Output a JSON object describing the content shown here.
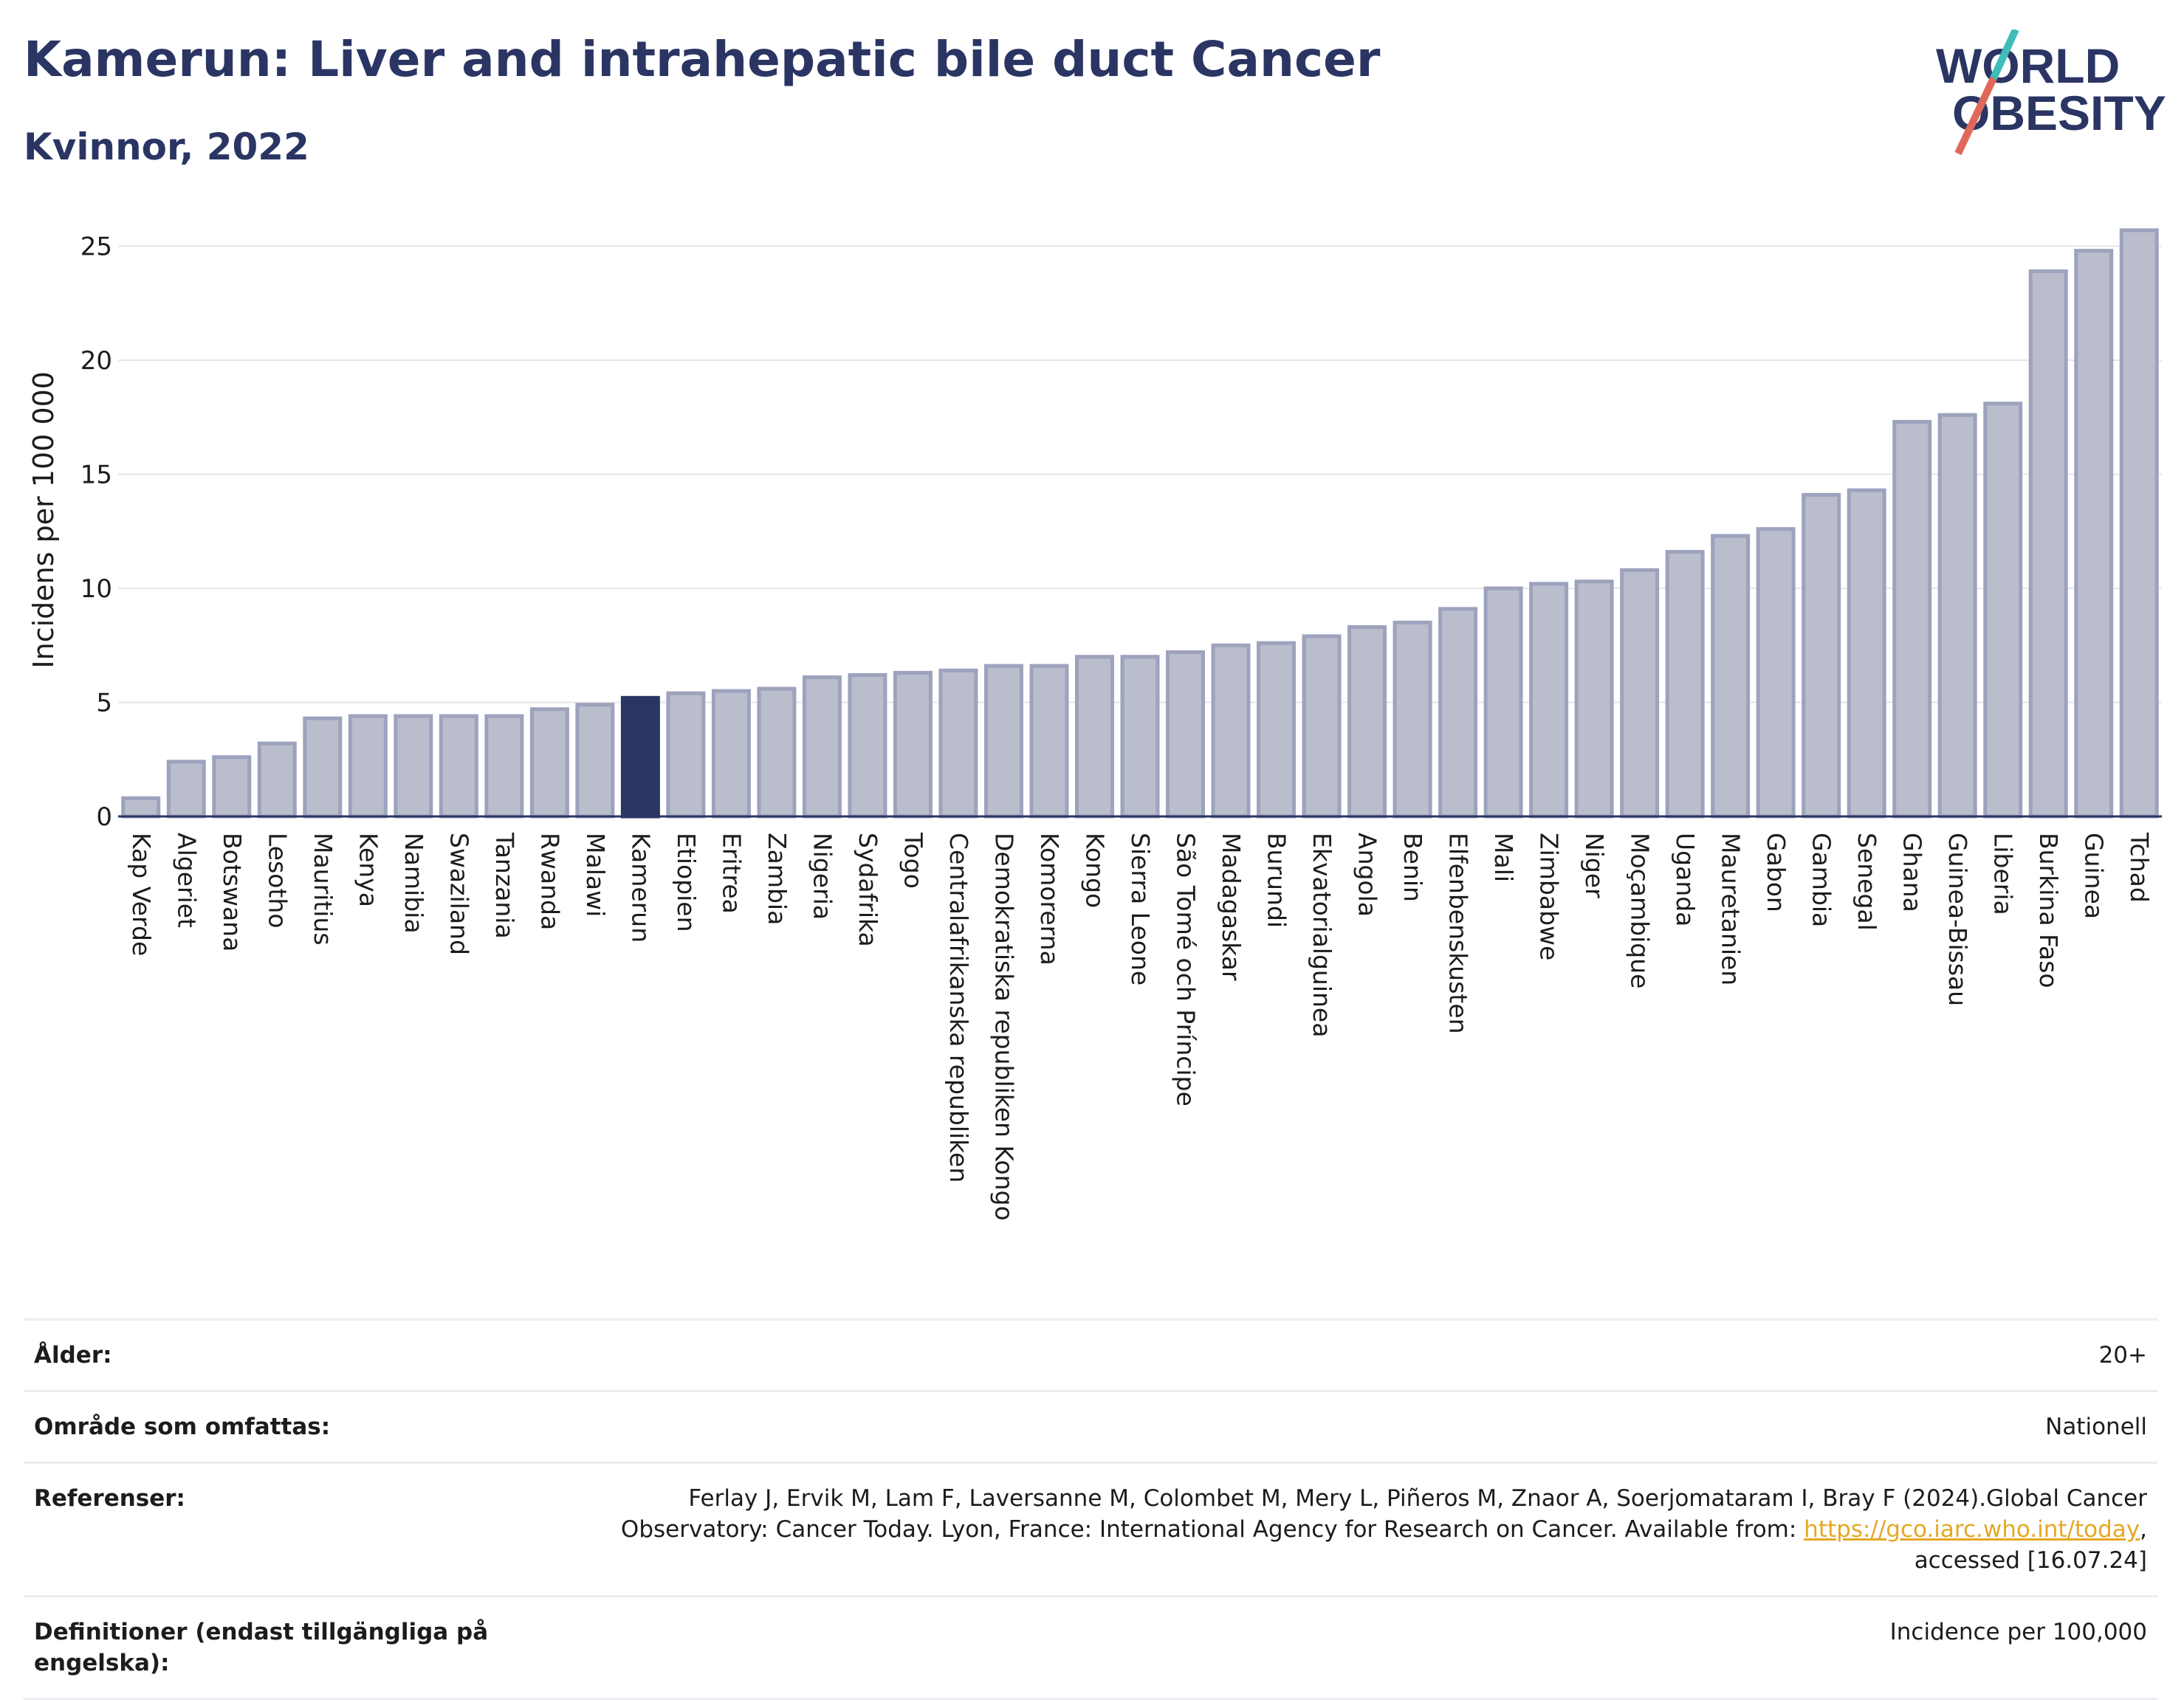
{
  "title": "Kamerun: Liver and intrahepatic bile duct Cancer",
  "subtitle": "Kvinnor, 2022",
  "logo": {
    "line1": "WORLD",
    "line2": "OBESITY",
    "accent_teal": "#3fbdb9",
    "accent_coral": "#e0685a"
  },
  "colors": {
    "bar": "#b9bdcc",
    "bar_stroke": "#9da2bd",
    "highlight": "#2b3563",
    "grid": "#e6e6ea",
    "axis": "#2b3563"
  },
  "chart_data": {
    "type": "bar",
    "title": "Kamerun: Liver and intrahepatic bile duct Cancer",
    "subtitle": "Kvinnor, 2022",
    "ylabel": "Incidens per 100 000",
    "xlabel": "",
    "ylim": [
      0,
      26.5
    ],
    "yticks": [
      0,
      5,
      10,
      15,
      20,
      25
    ],
    "highlight": "Kamerun",
    "grid": true,
    "categories": [
      "Kap Verde",
      "Algeriet",
      "Botswana",
      "Lesotho",
      "Mauritius",
      "Kenya",
      "Namibia",
      "Swaziland",
      "Tanzania",
      "Rwanda",
      "Malawi",
      "Kamerun",
      "Etiopien",
      "Eritrea",
      "Zambia",
      "Nigeria",
      "Sydafrika",
      "Togo",
      "Centralafrikanska republiken",
      "Demokratiska republiken Kongo",
      "Komorerna",
      "Kongo",
      "Sierra Leone",
      "São Tomé och Príncipe",
      "Madagaskar",
      "Burundi",
      "Ekvatorialguinea",
      "Angola",
      "Benin",
      "Elfenbenskusten",
      "Mali",
      "Zimbabwe",
      "Niger",
      "Moçambique",
      "Uganda",
      "Mauretanien",
      "Gabon",
      "Gambia",
      "Senegal",
      "Ghana",
      "Guinea-Bissau",
      "Liberia",
      "Burkina Faso",
      "Guinea",
      "Tchad"
    ],
    "values": [
      0.8,
      2.4,
      2.6,
      3.2,
      4.3,
      4.4,
      4.4,
      4.4,
      4.4,
      4.7,
      4.9,
      5.2,
      5.4,
      5.5,
      5.6,
      6.1,
      6.2,
      6.3,
      6.4,
      6.6,
      6.6,
      7.0,
      7.0,
      7.2,
      7.5,
      7.6,
      7.9,
      8.3,
      8.5,
      9.1,
      10.0,
      10.2,
      10.3,
      10.8,
      11.6,
      12.3,
      12.6,
      14.1,
      14.3,
      17.3,
      17.6,
      18.1,
      23.9,
      24.8,
      25.7
    ]
  },
  "info": [
    {
      "key": "Ålder:",
      "value": "20+"
    },
    {
      "key": "Område som omfattas:",
      "value": "Nationell"
    },
    {
      "key": "Referenser:",
      "value_line1": "Ferlay J, Ervik M, Lam F, Laversanne M, Colombet M, Mery L, Piñeros M, Znaor A, Soerjomataram I, Bray F (2024).Global Cancer",
      "value_line2_pre": "Observatory: Cancer Today. Lyon, France: International Agency for Research on Cancer. Available from: ",
      "link": "https://gco.iarc.who.int/today",
      "value_line2_post": ",",
      "value_line3": "accessed [16.07.24]"
    },
    {
      "key": "Definitioner (endast tillgängliga på engelska):",
      "value": "Incidence per 100,000"
    }
  ]
}
